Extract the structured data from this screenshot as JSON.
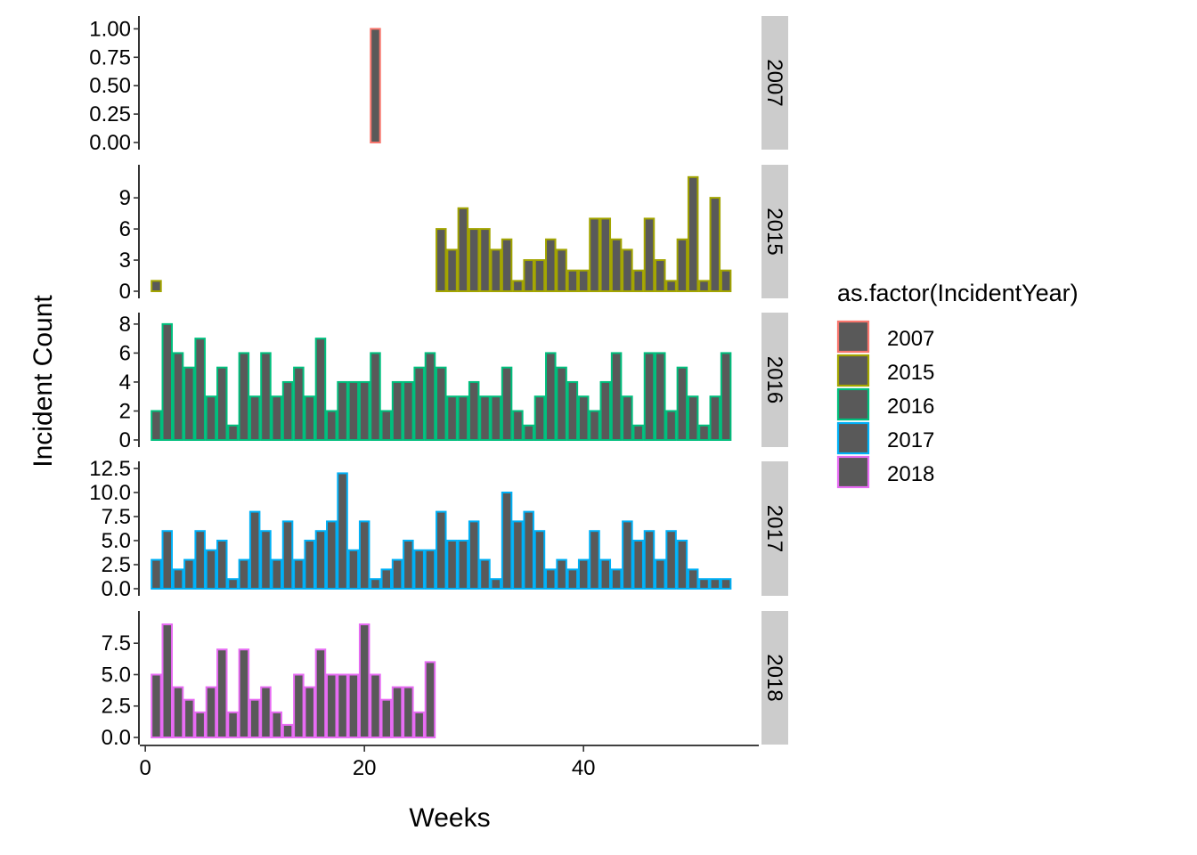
{
  "chart_data": {
    "type": "bar",
    "layout": "faceted-rows",
    "xlabel": "Weeks",
    "ylabel": "Incident Count",
    "x_ticks": [
      0,
      20,
      40
    ],
    "xlim": [
      -0.5,
      56
    ],
    "bar_fill": "#595959",
    "legend": {
      "title": "as.factor(IncidentYear)",
      "position": "right",
      "entries": [
        {
          "label": "2007",
          "color": "#F8766D"
        },
        {
          "label": "2015",
          "color": "#A3A500"
        },
        {
          "label": "2016",
          "color": "#00BF7D"
        },
        {
          "label": "2017",
          "color": "#00B0F6"
        },
        {
          "label": "2018",
          "color": "#E76BF3"
        }
      ]
    },
    "panels": [
      {
        "strip": "2007",
        "color": "#F8766D",
        "ylim": [
          0,
          1.05
        ],
        "y_ticks": [
          0,
          0.25,
          0.5,
          0.75,
          1
        ],
        "y_tick_labels": [
          "0.00",
          "0.25",
          "0.50",
          "0.75",
          "1.00"
        ],
        "bars": [
          {
            "x": 21,
            "y": 1
          }
        ]
      },
      {
        "strip": "2015",
        "color": "#A3A500",
        "ylim": [
          0,
          11.5
        ],
        "y_ticks": [
          0,
          3,
          6,
          9
        ],
        "y_tick_labels": [
          "0",
          "3",
          "6",
          "9"
        ],
        "bars": [
          {
            "x": 1,
            "y": 1
          },
          {
            "x": 27,
            "y": 6
          },
          {
            "x": 28,
            "y": 4
          },
          {
            "x": 29,
            "y": 8
          },
          {
            "x": 30,
            "y": 6
          },
          {
            "x": 31,
            "y": 6
          },
          {
            "x": 32,
            "y": 4
          },
          {
            "x": 33,
            "y": 5
          },
          {
            "x": 34,
            "y": 1
          },
          {
            "x": 35,
            "y": 3
          },
          {
            "x": 36,
            "y": 3
          },
          {
            "x": 37,
            "y": 5
          },
          {
            "x": 38,
            "y": 4
          },
          {
            "x": 39,
            "y": 2
          },
          {
            "x": 40,
            "y": 2
          },
          {
            "x": 41,
            "y": 7
          },
          {
            "x": 42,
            "y": 7
          },
          {
            "x": 43,
            "y": 5
          },
          {
            "x": 44,
            "y": 4
          },
          {
            "x": 45,
            "y": 2
          },
          {
            "x": 46,
            "y": 7
          },
          {
            "x": 47,
            "y": 3
          },
          {
            "x": 48,
            "y": 1
          },
          {
            "x": 49,
            "y": 5
          },
          {
            "x": 50,
            "y": 11
          },
          {
            "x": 51,
            "y": 1
          },
          {
            "x": 52,
            "y": 9
          },
          {
            "x": 53,
            "y": 2
          }
        ]
      },
      {
        "strip": "2016",
        "color": "#00BF7D",
        "ylim": [
          0,
          8.3
        ],
        "y_ticks": [
          0,
          2,
          4,
          6,
          8
        ],
        "y_tick_labels": [
          "0",
          "2",
          "4",
          "6",
          "8"
        ],
        "bars": [
          {
            "x": 1,
            "y": 2
          },
          {
            "x": 2,
            "y": 8
          },
          {
            "x": 3,
            "y": 6
          },
          {
            "x": 4,
            "y": 5
          },
          {
            "x": 5,
            "y": 7
          },
          {
            "x": 6,
            "y": 3
          },
          {
            "x": 7,
            "y": 5
          },
          {
            "x": 8,
            "y": 1
          },
          {
            "x": 9,
            "y": 6
          },
          {
            "x": 10,
            "y": 3
          },
          {
            "x": 11,
            "y": 6
          },
          {
            "x": 12,
            "y": 3
          },
          {
            "x": 13,
            "y": 4
          },
          {
            "x": 14,
            "y": 5
          },
          {
            "x": 15,
            "y": 3
          },
          {
            "x": 16,
            "y": 7
          },
          {
            "x": 17,
            "y": 2
          },
          {
            "x": 18,
            "y": 4
          },
          {
            "x": 19,
            "y": 4
          },
          {
            "x": 20,
            "y": 4
          },
          {
            "x": 21,
            "y": 6
          },
          {
            "x": 22,
            "y": 2
          },
          {
            "x": 23,
            "y": 4
          },
          {
            "x": 24,
            "y": 4
          },
          {
            "x": 25,
            "y": 5
          },
          {
            "x": 26,
            "y": 6
          },
          {
            "x": 27,
            "y": 5
          },
          {
            "x": 28,
            "y": 3
          },
          {
            "x": 29,
            "y": 3
          },
          {
            "x": 30,
            "y": 4
          },
          {
            "x": 31,
            "y": 3
          },
          {
            "x": 32,
            "y": 3
          },
          {
            "x": 33,
            "y": 5
          },
          {
            "x": 34,
            "y": 2
          },
          {
            "x": 35,
            "y": 1
          },
          {
            "x": 36,
            "y": 3
          },
          {
            "x": 37,
            "y": 6
          },
          {
            "x": 38,
            "y": 5
          },
          {
            "x": 39,
            "y": 4
          },
          {
            "x": 40,
            "y": 3
          },
          {
            "x": 41,
            "y": 2
          },
          {
            "x": 42,
            "y": 4
          },
          {
            "x": 43,
            "y": 6
          },
          {
            "x": 44,
            "y": 3
          },
          {
            "x": 45,
            "y": 1
          },
          {
            "x": 46,
            "y": 6
          },
          {
            "x": 47,
            "y": 6
          },
          {
            "x": 48,
            "y": 2
          },
          {
            "x": 49,
            "y": 5
          },
          {
            "x": 50,
            "y": 3
          },
          {
            "x": 51,
            "y": 1
          },
          {
            "x": 52,
            "y": 3
          },
          {
            "x": 53,
            "y": 6
          }
        ]
      },
      {
        "strip": "2017",
        "color": "#00B0F6",
        "ylim": [
          0,
          12.5
        ],
        "y_ticks": [
          0,
          2.5,
          5,
          7.5,
          10,
          12.5
        ],
        "y_tick_labels": [
          "0.0",
          "2.5",
          "5.0",
          "7.5",
          "10.0",
          "12.5"
        ],
        "bars": [
          {
            "x": 1,
            "y": 3
          },
          {
            "x": 2,
            "y": 6
          },
          {
            "x": 3,
            "y": 2
          },
          {
            "x": 4,
            "y": 3
          },
          {
            "x": 5,
            "y": 6
          },
          {
            "x": 6,
            "y": 4
          },
          {
            "x": 7,
            "y": 5
          },
          {
            "x": 8,
            "y": 1
          },
          {
            "x": 9,
            "y": 3
          },
          {
            "x": 10,
            "y": 8
          },
          {
            "x": 11,
            "y": 6
          },
          {
            "x": 12,
            "y": 3
          },
          {
            "x": 13,
            "y": 7
          },
          {
            "x": 14,
            "y": 3
          },
          {
            "x": 15,
            "y": 5
          },
          {
            "x": 16,
            "y": 6
          },
          {
            "x": 17,
            "y": 7
          },
          {
            "x": 18,
            "y": 12
          },
          {
            "x": 19,
            "y": 4
          },
          {
            "x": 20,
            "y": 7
          },
          {
            "x": 21,
            "y": 1
          },
          {
            "x": 22,
            "y": 2
          },
          {
            "x": 23,
            "y": 3
          },
          {
            "x": 24,
            "y": 5
          },
          {
            "x": 25,
            "y": 4
          },
          {
            "x": 26,
            "y": 4
          },
          {
            "x": 27,
            "y": 8
          },
          {
            "x": 28,
            "y": 5
          },
          {
            "x": 29,
            "y": 5
          },
          {
            "x": 30,
            "y": 7
          },
          {
            "x": 31,
            "y": 3
          },
          {
            "x": 32,
            "y": 1
          },
          {
            "x": 33,
            "y": 10
          },
          {
            "x": 34,
            "y": 7
          },
          {
            "x": 35,
            "y": 8
          },
          {
            "x": 36,
            "y": 6
          },
          {
            "x": 37,
            "y": 2
          },
          {
            "x": 38,
            "y": 3
          },
          {
            "x": 39,
            "y": 2
          },
          {
            "x": 40,
            "y": 3
          },
          {
            "x": 41,
            "y": 6
          },
          {
            "x": 42,
            "y": 3
          },
          {
            "x": 43,
            "y": 2
          },
          {
            "x": 44,
            "y": 7
          },
          {
            "x": 45,
            "y": 5
          },
          {
            "x": 46,
            "y": 6
          },
          {
            "x": 47,
            "y": 3
          },
          {
            "x": 48,
            "y": 6
          },
          {
            "x": 49,
            "y": 5
          },
          {
            "x": 50,
            "y": 2
          },
          {
            "x": 51,
            "y": 1
          },
          {
            "x": 52,
            "y": 1
          },
          {
            "x": 53,
            "y": 1
          }
        ]
      },
      {
        "strip": "2018",
        "color": "#E76BF3",
        "ylim": [
          0,
          9.5
        ],
        "y_ticks": [
          0,
          2.5,
          5,
          7.5
        ],
        "y_tick_labels": [
          "0.0",
          "2.5",
          "5.0",
          "7.5"
        ],
        "bars": [
          {
            "x": 1,
            "y": 5
          },
          {
            "x": 2,
            "y": 9
          },
          {
            "x": 3,
            "y": 4
          },
          {
            "x": 4,
            "y": 3
          },
          {
            "x": 5,
            "y": 2
          },
          {
            "x": 6,
            "y": 4
          },
          {
            "x": 7,
            "y": 7
          },
          {
            "x": 8,
            "y": 2
          },
          {
            "x": 9,
            "y": 7
          },
          {
            "x": 10,
            "y": 3
          },
          {
            "x": 11,
            "y": 4
          },
          {
            "x": 12,
            "y": 2
          },
          {
            "x": 13,
            "y": 1
          },
          {
            "x": 14,
            "y": 5
          },
          {
            "x": 15,
            "y": 4
          },
          {
            "x": 16,
            "y": 7
          },
          {
            "x": 17,
            "y": 5
          },
          {
            "x": 18,
            "y": 5
          },
          {
            "x": 19,
            "y": 5
          },
          {
            "x": 20,
            "y": 9
          },
          {
            "x": 21,
            "y": 5
          },
          {
            "x": 22,
            "y": 3
          },
          {
            "x": 23,
            "y": 4
          },
          {
            "x": 24,
            "y": 4
          },
          {
            "x": 25,
            "y": 2
          },
          {
            "x": 26,
            "y": 6
          }
        ]
      }
    ]
  }
}
